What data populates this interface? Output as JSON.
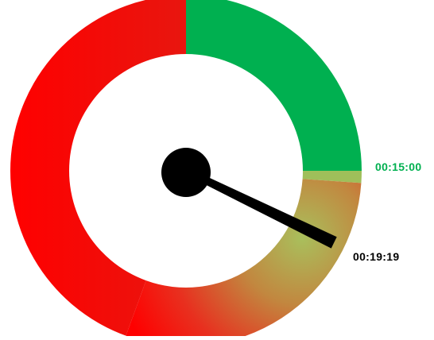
{
  "chart_data": {
    "type": "gauge",
    "target_label": "00:15:00",
    "current_label": "00:19:19",
    "target_seconds": 900,
    "current_seconds": 1159,
    "colors": {
      "good": "#00b050",
      "bad": "#ff0000",
      "transition_light": "#9fbf5a",
      "target_text": "#00b050",
      "current_text": "#000000",
      "needle": "#000000"
    }
  }
}
